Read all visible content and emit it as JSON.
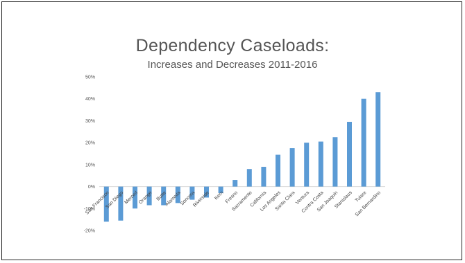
{
  "title": "Dependency Caseloads:",
  "subtitle": "Increases and Decreases 2011-2016",
  "chart_data": {
    "type": "bar",
    "categories": [
      "San Francisco",
      "San Diego",
      "Merced",
      "Orange",
      "Butte",
      "Alameda",
      "Sonoma",
      "Riverside",
      "Kern",
      "Fresno",
      "Sacramento",
      "California",
      "Los Angeles",
      "Santa Clara",
      "Ventura",
      "Contra Costa",
      "San Joaquin",
      "Stanislaus",
      "Tulare",
      "San Bernardino"
    ],
    "values": [
      -16,
      -15.5,
      -10,
      -8.5,
      -8.5,
      -7.5,
      -6,
      -5,
      -3,
      3,
      8,
      9,
      14.5,
      17.5,
      20,
      20.5,
      22.5,
      29.5,
      40,
      43
    ],
    "yticks": [
      "50%",
      "40%",
      "30%",
      "20%",
      "10%",
      "0%",
      "-10%",
      "-20%"
    ],
    "ylim": [
      -20,
      50
    ],
    "grid": false,
    "color": "#5b9bd5"
  }
}
